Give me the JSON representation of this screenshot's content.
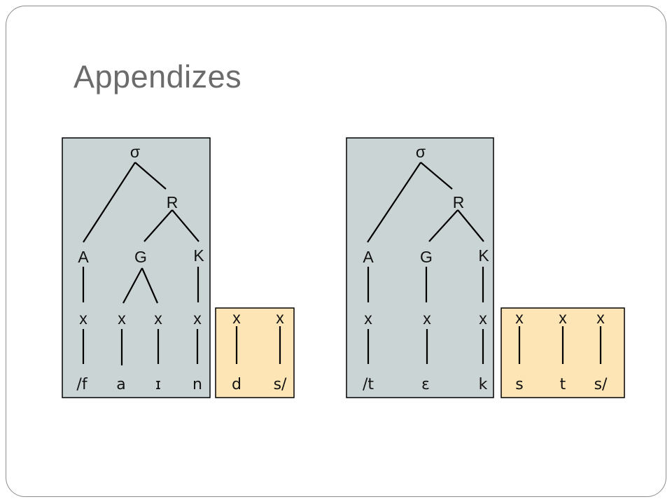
{
  "slide": {
    "title": "Appendizes"
  },
  "diagrams": [
    {
      "syllable": "σ",
      "rhyme": "R",
      "onset": "A",
      "nucleus": "G",
      "coda": "K",
      "skeleton": [
        "x",
        "x",
        "x",
        "x"
      ],
      "segments": [
        "/f",
        "a",
        "ɪ",
        "n"
      ],
      "appendix_skeleton": [
        "x",
        "x"
      ],
      "appendix_segments": [
        "d",
        "s/"
      ]
    },
    {
      "syllable": "σ",
      "rhyme": "R",
      "onset": "A",
      "nucleus": "G",
      "coda": "K",
      "skeleton": [
        "x",
        "x",
        "x"
      ],
      "segments": [
        "/t",
        "ɛ",
        "k"
      ],
      "appendix_skeleton": [
        "x",
        "x",
        "x"
      ],
      "appendix_segments": [
        "s",
        "t",
        "s/"
      ]
    }
  ],
  "colors": {
    "syllable_box": "#cbd4d4",
    "appendix_box": "#fde5b5",
    "title": "#6b6b6b",
    "frame_border": "#8c8c8c"
  }
}
